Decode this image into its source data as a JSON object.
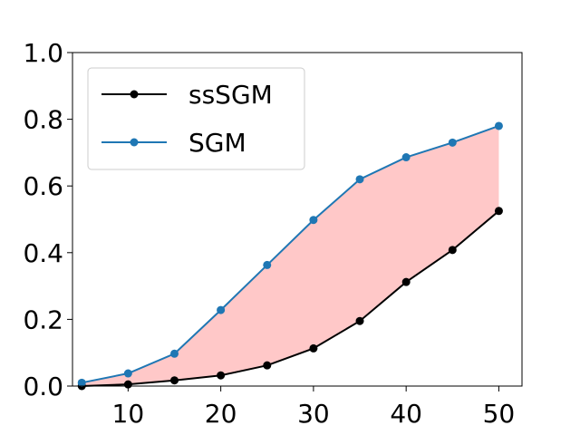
{
  "chart_data": {
    "type": "line",
    "title": "",
    "xlabel": "",
    "ylabel": "",
    "x": [
      5,
      10,
      15,
      20,
      25,
      30,
      35,
      40,
      45,
      50
    ],
    "xlim": [
      4.0,
      52.5
    ],
    "ylim": [
      0.0,
      1.0
    ],
    "xticks": [
      10,
      20,
      30,
      40,
      50
    ],
    "yticks": [
      0.0,
      0.2,
      0.4,
      0.6,
      0.8,
      1.0
    ],
    "xtick_labels": [
      "10",
      "20",
      "30",
      "40",
      "50"
    ],
    "ytick_labels": [
      "0.0",
      "0.2",
      "0.4",
      "0.6",
      "0.8",
      "1.0"
    ],
    "grid": false,
    "legend_position": "upper-left",
    "series": [
      {
        "name": "ssSGM",
        "color": "#000000",
        "marker": "circle",
        "values": [
          0.0,
          0.005,
          0.017,
          0.032,
          0.062,
          0.113,
          0.195,
          0.312,
          0.408,
          0.525
        ]
      },
      {
        "name": "SGM",
        "color": "#1f77b4",
        "marker": "circle",
        "values": [
          0.01,
          0.038,
          0.097,
          0.228,
          0.363,
          0.498,
          0.62,
          0.686,
          0.73,
          0.78
        ]
      }
    ],
    "fill_between": {
      "lower_series": "ssSGM",
      "upper_series": "SGM",
      "color": "#ffc8c8"
    }
  }
}
